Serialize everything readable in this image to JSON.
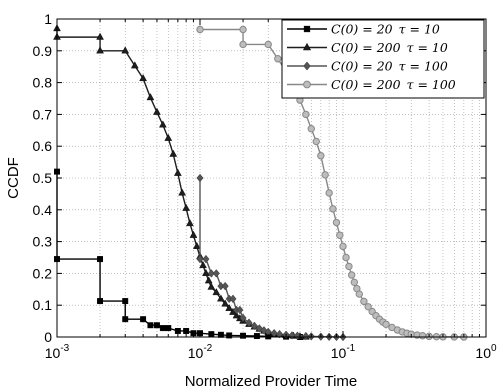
{
  "chart_data": {
    "type": "line",
    "title": "",
    "xlabel": "Normalized Provider Time",
    "ylabel": "CCDF",
    "x_scale": "log",
    "xlim": [
      0.001,
      1
    ],
    "ylim": [
      0,
      1
    ],
    "grid": true,
    "legend_position": "top-right",
    "x_ticks": [
      {
        "value": 0.001,
        "base": "10",
        "exp": "-3"
      },
      {
        "value": 0.01,
        "base": "10",
        "exp": "-2"
      },
      {
        "value": 0.1,
        "base": "10",
        "exp": "-1"
      },
      {
        "value": 1,
        "base": "10",
        "exp": "0"
      }
    ],
    "y_ticks": [
      "0",
      "0.1",
      "0.2",
      "0.3",
      "0.4",
      "0.5",
      "0.6",
      "0.7",
      "0.8",
      "0.9",
      "1"
    ],
    "series": [
      {
        "name": "C(0) = 20 τ = 10",
        "marker": "square",
        "color": "#000000",
        "x": [
          0.001,
          0.001,
          0.002,
          0.002,
          0.003,
          0.003,
          0.004,
          0.0045,
          0.005,
          0.0055,
          0.006,
          0.007,
          0.008,
          0.009,
          0.01,
          0.012,
          0.014,
          0.016,
          0.02,
          0.025,
          0.03,
          0.04,
          0.05
        ],
        "y": [
          0.52,
          0.245,
          0.245,
          0.113,
          0.113,
          0.056,
          0.056,
          0.037,
          0.037,
          0.028,
          0.028,
          0.019,
          0.019,
          0.012,
          0.012,
          0.009,
          0.007,
          0.005,
          0.004,
          0.003,
          0.002,
          0.001,
          0.0
        ]
      },
      {
        "name": "C(0) = 200 τ = 10",
        "marker": "triangle",
        "color": "#1e1e1e",
        "x": [
          0.001,
          0.001,
          0.002,
          0.002,
          0.003,
          0.0035,
          0.004,
          0.0045,
          0.005,
          0.0055,
          0.006,
          0.0065,
          0.007,
          0.0075,
          0.008,
          0.0085,
          0.009,
          0.0095,
          0.01,
          0.0105,
          0.011,
          0.0115,
          0.012,
          0.013,
          0.014,
          0.015,
          0.016,
          0.017,
          0.018,
          0.019,
          0.02,
          0.022,
          0.024,
          0.026,
          0.028,
          0.03,
          0.033,
          0.036,
          0.04,
          0.045,
          0.05,
          0.055
        ],
        "y": [
          0.97,
          0.943,
          0.943,
          0.9,
          0.9,
          0.853,
          0.813,
          0.753,
          0.707,
          0.667,
          0.625,
          0.575,
          0.515,
          0.453,
          0.405,
          0.357,
          0.32,
          0.285,
          0.253,
          0.225,
          0.2,
          0.177,
          0.157,
          0.14,
          0.12,
          0.104,
          0.09,
          0.078,
          0.067,
          0.058,
          0.05,
          0.04,
          0.032,
          0.025,
          0.019,
          0.015,
          0.011,
          0.008,
          0.005,
          0.003,
          0.0015,
          0.0
        ]
      },
      {
        "name": "C(0) = 20 τ = 100",
        "marker": "diamond",
        "color": "#555555",
        "x": [
          0.01,
          0.01,
          0.011,
          0.012,
          0.013,
          0.014,
          0.015,
          0.016,
          0.017,
          0.018,
          0.019,
          0.02,
          0.022,
          0.024,
          0.026,
          0.028,
          0.03,
          0.033,
          0.036,
          0.04,
          0.044,
          0.048,
          0.055,
          0.06,
          0.07,
          0.08,
          0.09,
          0.1
        ],
        "y": [
          0.5,
          0.245,
          0.245,
          0.2,
          0.2,
          0.16,
          0.16,
          0.12,
          0.12,
          0.085,
          0.085,
          0.06,
          0.045,
          0.035,
          0.027,
          0.021,
          0.016,
          0.012,
          0.009,
          0.007,
          0.005,
          0.004,
          0.003,
          0.002,
          0.001,
          0.0005,
          0.0002,
          0.0
        ]
      },
      {
        "name": "C(0) = 200 τ = 100",
        "marker": "circle",
        "color": "#888888",
        "x": [
          0.01,
          0.02,
          0.02,
          0.03,
          0.035,
          0.04,
          0.045,
          0.05,
          0.055,
          0.06,
          0.065,
          0.07,
          0.075,
          0.08,
          0.085,
          0.09,
          0.095,
          0.1,
          0.105,
          0.11,
          0.115,
          0.12,
          0.125,
          0.13,
          0.14,
          0.15,
          0.16,
          0.17,
          0.18,
          0.19,
          0.2,
          0.22,
          0.24,
          0.26,
          0.28,
          0.3,
          0.33,
          0.36,
          0.4,
          0.45,
          0.5,
          0.6,
          0.7
        ],
        "y": [
          0.967,
          0.967,
          0.92,
          0.92,
          0.875,
          0.835,
          0.79,
          0.745,
          0.7,
          0.655,
          0.615,
          0.57,
          0.51,
          0.453,
          0.403,
          0.36,
          0.32,
          0.285,
          0.25,
          0.222,
          0.195,
          0.172,
          0.152,
          0.135,
          0.112,
          0.095,
          0.08,
          0.067,
          0.056,
          0.047,
          0.04,
          0.03,
          0.022,
          0.016,
          0.012,
          0.009,
          0.006,
          0.004,
          0.002,
          0.001,
          0.0005,
          0.0002,
          0.0
        ]
      }
    ],
    "legend": [
      {
        "id": "s1",
        "label_main": "C(0) = 20",
        "label_sym": "τ = 10"
      },
      {
        "id": "s2",
        "label_main": "C(0) = 200",
        "label_sym": "τ = 10"
      },
      {
        "id": "s3",
        "label_main": "C(0) = 20",
        "label_sym": "τ = 100"
      },
      {
        "id": "s4",
        "label_main": "C(0) = 200",
        "label_sym": "τ = 100"
      }
    ]
  }
}
